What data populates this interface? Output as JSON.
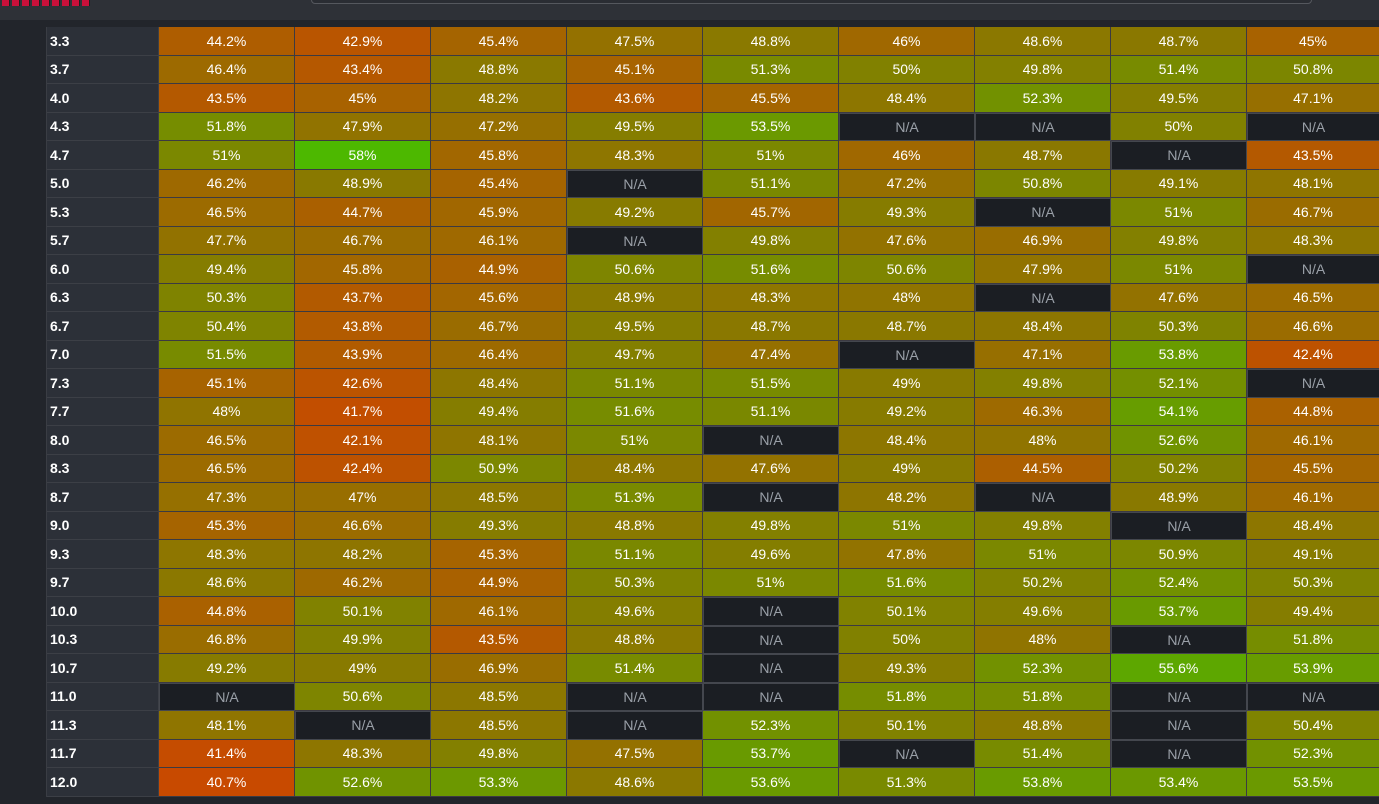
{
  "rows": [
    {
      "label": "3.3",
      "values": [
        "44.2%",
        "42.9%",
        "45.4%",
        "47.5%",
        "48.8%",
        "46%",
        "48.6%",
        "48.7%",
        "45%"
      ]
    },
    {
      "label": "3.7",
      "values": [
        "46.4%",
        "43.4%",
        "48.8%",
        "45.1%",
        "51.3%",
        "50%",
        "49.8%",
        "51.4%",
        "50.8%"
      ]
    },
    {
      "label": "4.0",
      "values": [
        "43.5%",
        "45%",
        "48.2%",
        "43.6%",
        "45.5%",
        "48.4%",
        "52.3%",
        "49.5%",
        "47.1%"
      ]
    },
    {
      "label": "4.3",
      "values": [
        "51.8%",
        "47.9%",
        "47.2%",
        "49.5%",
        "53.5%",
        "N/A",
        "N/A",
        "50%",
        "N/A"
      ]
    },
    {
      "label": "4.7",
      "values": [
        "51%",
        "58%",
        "45.8%",
        "48.3%",
        "51%",
        "46%",
        "48.7%",
        "N/A",
        "43.5%"
      ]
    },
    {
      "label": "5.0",
      "values": [
        "46.2%",
        "48.9%",
        "45.4%",
        "N/A",
        "51.1%",
        "47.2%",
        "50.8%",
        "49.1%",
        "48.1%"
      ]
    },
    {
      "label": "5.3",
      "values": [
        "46.5%",
        "44.7%",
        "45.9%",
        "49.2%",
        "45.7%",
        "49.3%",
        "N/A",
        "51%",
        "46.7%"
      ]
    },
    {
      "label": "5.7",
      "values": [
        "47.7%",
        "46.7%",
        "46.1%",
        "N/A",
        "49.8%",
        "47.6%",
        "46.9%",
        "49.8%",
        "48.3%"
      ]
    },
    {
      "label": "6.0",
      "values": [
        "49.4%",
        "45.8%",
        "44.9%",
        "50.6%",
        "51.6%",
        "50.6%",
        "47.9%",
        "51%",
        "N/A"
      ]
    },
    {
      "label": "6.3",
      "values": [
        "50.3%",
        "43.7%",
        "45.6%",
        "48.9%",
        "48.3%",
        "48%",
        "N/A",
        "47.6%",
        "46.5%"
      ]
    },
    {
      "label": "6.7",
      "values": [
        "50.4%",
        "43.8%",
        "46.7%",
        "49.5%",
        "48.7%",
        "48.7%",
        "48.4%",
        "50.3%",
        "46.6%"
      ]
    },
    {
      "label": "7.0",
      "values": [
        "51.5%",
        "43.9%",
        "46.4%",
        "49.7%",
        "47.4%",
        "N/A",
        "47.1%",
        "53.8%",
        "42.4%"
      ]
    },
    {
      "label": "7.3",
      "values": [
        "45.1%",
        "42.6%",
        "48.4%",
        "51.1%",
        "51.5%",
        "49%",
        "49.8%",
        "52.1%",
        "N/A"
      ]
    },
    {
      "label": "7.7",
      "values": [
        "48%",
        "41.7%",
        "49.4%",
        "51.6%",
        "51.1%",
        "49.2%",
        "46.3%",
        "54.1%",
        "44.8%"
      ]
    },
    {
      "label": "8.0",
      "values": [
        "46.5%",
        "42.1%",
        "48.1%",
        "51%",
        "N/A",
        "48.4%",
        "48%",
        "52.6%",
        "46.1%"
      ]
    },
    {
      "label": "8.3",
      "values": [
        "46.5%",
        "42.4%",
        "50.9%",
        "48.4%",
        "47.6%",
        "49%",
        "44.5%",
        "50.2%",
        "45.5%"
      ]
    },
    {
      "label": "8.7",
      "values": [
        "47.3%",
        "47%",
        "48.5%",
        "51.3%",
        "N/A",
        "48.2%",
        "N/A",
        "48.9%",
        "46.1%"
      ]
    },
    {
      "label": "9.0",
      "values": [
        "45.3%",
        "46.6%",
        "49.3%",
        "48.8%",
        "49.8%",
        "51%",
        "49.8%",
        "N/A",
        "48.4%"
      ]
    },
    {
      "label": "9.3",
      "values": [
        "48.3%",
        "48.2%",
        "45.3%",
        "51.1%",
        "49.6%",
        "47.8%",
        "51%",
        "50.9%",
        "49.1%"
      ]
    },
    {
      "label": "9.7",
      "values": [
        "48.6%",
        "46.2%",
        "44.9%",
        "50.3%",
        "51%",
        "51.6%",
        "50.2%",
        "52.4%",
        "50.3%"
      ]
    },
    {
      "label": "10.0",
      "values": [
        "44.8%",
        "50.1%",
        "46.1%",
        "49.6%",
        "N/A",
        "50.1%",
        "49.6%",
        "53.7%",
        "49.4%"
      ]
    },
    {
      "label": "10.3",
      "values": [
        "46.8%",
        "49.9%",
        "43.5%",
        "48.8%",
        "N/A",
        "50%",
        "48%",
        "N/A",
        "51.8%"
      ]
    },
    {
      "label": "10.7",
      "values": [
        "49.2%",
        "49%",
        "46.9%",
        "51.4%",
        "N/A",
        "49.3%",
        "52.3%",
        "55.6%",
        "53.9%"
      ]
    },
    {
      "label": "11.0",
      "values": [
        "N/A",
        "50.6%",
        "48.5%",
        "N/A",
        "N/A",
        "51.8%",
        "51.8%",
        "N/A",
        "N/A"
      ]
    },
    {
      "label": "11.3",
      "values": [
        "48.1%",
        "N/A",
        "48.5%",
        "N/A",
        "52.3%",
        "50.1%",
        "48.8%",
        "N/A",
        "50.4%"
      ]
    },
    {
      "label": "11.7",
      "values": [
        "41.4%",
        "48.3%",
        "49.8%",
        "47.5%",
        "53.7%",
        "N/A",
        "51.4%",
        "N/A",
        "52.3%"
      ]
    },
    {
      "label": "12.0",
      "values": [
        "40.7%",
        "52.6%",
        "53.3%",
        "48.6%",
        "53.6%",
        "51.3%",
        "53.8%",
        "53.4%",
        "53.5%"
      ]
    }
  ],
  "colors": {
    "na_bg": "#1b1e23",
    "low": "#c84a00",
    "mid": "#887a00",
    "high": "#4db800",
    "label_bg": "#2c3038",
    "brand": "#c8103a"
  }
}
